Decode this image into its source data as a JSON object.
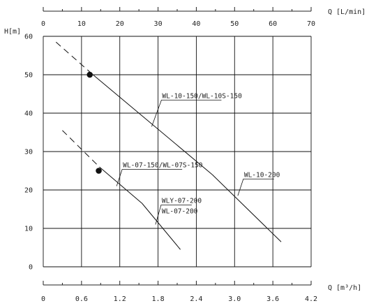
{
  "chart_data": {
    "type": "line",
    "xlabel_top": "Q [L/min]",
    "xlabel_bottom": "Q [m³/h]",
    "ylabel": "H[m]",
    "x_top_ticks": [
      "0",
      "10",
      "20",
      "30",
      "40",
      "50",
      "60",
      "70"
    ],
    "x_bottom_ticks": [
      "0",
      "0.6",
      "1.2",
      "1.8",
      "2.4",
      "3.0",
      "3.6",
      "4.2"
    ],
    "y_ticks": [
      "0",
      "10",
      "20",
      "30",
      "40",
      "50",
      "60"
    ],
    "xlim": [
      0,
      4.2
    ],
    "ylim": [
      0,
      60
    ],
    "grid": true,
    "series": [
      {
        "name": "WL-10-150/WL-10S-150",
        "dash_x": [
          0.2,
          0.78
        ],
        "dash_y": [
          58.5,
          50.0
        ],
        "solid_x": [
          0.78,
          2.65
        ],
        "solid_y": [
          50.0,
          24.0
        ],
        "marker": {
          "x": 0.73,
          "y": 50.0
        }
      },
      {
        "name": "WL-10-200",
        "solid_x": [
          2.65,
          3.73
        ],
        "solid_y": [
          24.0,
          6.5
        ]
      },
      {
        "name": "WL-07-150/WL-07S-150",
        "dash_x": [
          0.3,
          0.88
        ],
        "dash_y": [
          35.5,
          26.0
        ],
        "solid_x": [
          0.88,
          1.55
        ],
        "solid_y": [
          26.0,
          16.5
        ],
        "marker": {
          "x": 0.87,
          "y": 25.0
        }
      },
      {
        "name": "WLY-07-200",
        "name2": "WL-07-200",
        "solid_x": [
          1.55,
          2.15
        ],
        "solid_y": [
          16.5,
          4.5
        ]
      }
    ],
    "annotations": [
      {
        "text": "WL-10-150/WL-10S-150",
        "at_x": 1.7,
        "at_y": 36.5
      },
      {
        "text": "WL-07-150/WL-07S-150",
        "at_x": 1.15,
        "at_y": 21.0
      },
      {
        "text": "WL-10-200",
        "at_x": 3.05,
        "at_y": 18.5
      },
      {
        "text": "WLY-07-200",
        "text2": "WL-07-200",
        "at_x": 1.76,
        "at_y": 11.0
      }
    ]
  }
}
